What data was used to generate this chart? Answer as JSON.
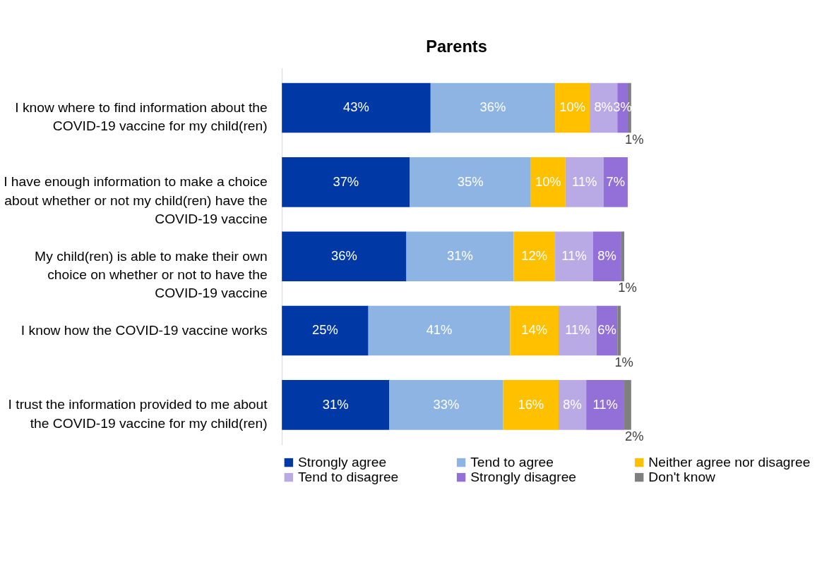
{
  "chart_data": {
    "type": "bar",
    "orientation": "horizontal",
    "stacked": true,
    "title": "Parents",
    "categories": [
      "I know where to find information about the COVID-19 vaccine for my child(ren)",
      "I have enough information to make a choice about whether or not my child(ren) have the COVID-19 vaccine",
      "My child(ren) is able to make their own choice on whether or not to have the COVID-19 vaccine",
      "I know how the COVID-19 vaccine works",
      "I trust the information provided to me about the COVID-19 vaccine for my child(ren)"
    ],
    "series": [
      {
        "name": "Strongly agree",
        "color": "#0039a6",
        "values": [
          43,
          37,
          36,
          25,
          31
        ],
        "value_labels": [
          "43%",
          "37%",
          "36%",
          "25%",
          "31%"
        ]
      },
      {
        "name": "Tend to agree",
        "color": "#8eb4e3",
        "values": [
          36,
          35,
          31,
          41,
          33
        ],
        "value_labels": [
          "36%",
          "35%",
          "31%",
          "41%",
          "33%"
        ]
      },
      {
        "name": "Neither agree nor disagree",
        "color": "#ffc000",
        "values": [
          10,
          10,
          12,
          14,
          16
        ],
        "value_labels": [
          "10%",
          "10%",
          "12%",
          "14%",
          "16%"
        ]
      },
      {
        "name": "Tend to disagree",
        "color": "#b9a9e4",
        "values": [
          8,
          11,
          11,
          11,
          8
        ],
        "value_labels": [
          "8%",
          "11%",
          "11%",
          "11%",
          "8%"
        ]
      },
      {
        "name": "Strongly disagree",
        "color": "#9370d8",
        "values": [
          3,
          7,
          8,
          6,
          11
        ],
        "value_labels": [
          "3%",
          "7%",
          "8%",
          "6%",
          "11%"
        ]
      },
      {
        "name": "Don't know",
        "color": "#7f7f7f",
        "values": [
          1,
          null,
          1,
          1,
          2
        ],
        "value_labels": [
          "1%",
          null,
          "1%",
          "1%",
          "2%"
        ]
      }
    ],
    "legend": "bottom",
    "grid": false
  }
}
